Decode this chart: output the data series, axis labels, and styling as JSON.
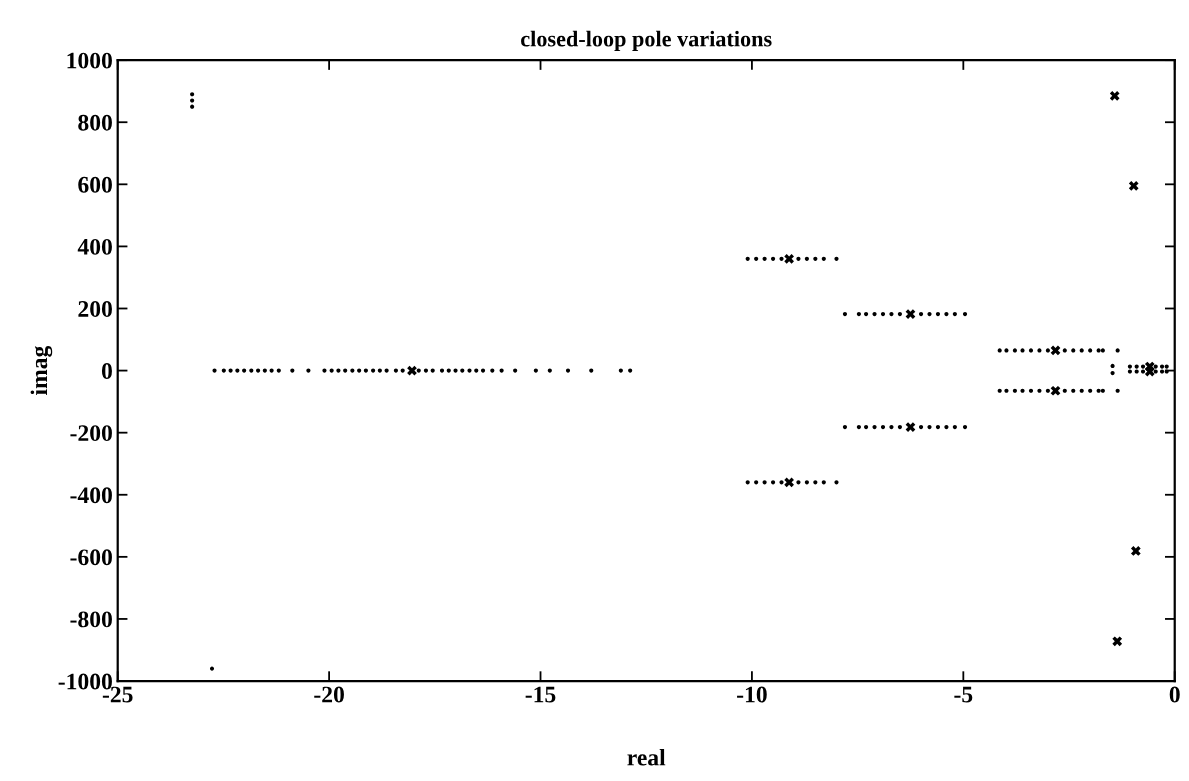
{
  "chart_data": {
    "type": "scatter",
    "title": "closed-loop pole variations",
    "xlabel": "real",
    "ylabel": "imag",
    "xlim": [
      -25,
      0
    ],
    "xticks": [
      -25,
      -20,
      -15,
      -10,
      -5,
      0
    ],
    "ylim": [
      -1000,
      1000
    ],
    "yticks": [
      -1000,
      -800,
      -600,
      -400,
      -200,
      0,
      200,
      400,
      600,
      800,
      1000
    ],
    "grid": false,
    "legend": false,
    "series": [
      {
        "color": "#000000",
        "marker": "circle",
        "x": [
          -22.71,
          -22.49,
          -22.33,
          -22.17,
          -22.01,
          -21.84,
          -21.68,
          -21.52,
          -21.36,
          -21.19,
          -20.87,
          -20.49,
          -20.11,
          -19.94,
          -19.78,
          -19.62,
          -19.45,
          -19.29,
          -19.13,
          -18.96,
          -18.8,
          -18.64,
          -18.42,
          -18.26,
          -17.88,
          -17.71,
          -17.55,
          -17.33,
          -17.17,
          -17.01,
          -16.85,
          -16.68,
          -16.52,
          -16.36,
          -16.14,
          -15.92,
          -15.6,
          -15.11,
          -14.78,
          -14.35,
          -13.8,
          -13.1,
          -12.88,
          -10.1,
          -9.9,
          -9.7,
          -9.5,
          -9.3,
          -8.9,
          -8.7,
          -8.5,
          -8.3,
          -8.0,
          -10.1,
          -9.9,
          -9.7,
          -9.5,
          -9.3,
          -8.9,
          -8.7,
          -8.5,
          -8.3,
          -8.0,
          -7.8,
          -7.47,
          -7.3,
          -7.1,
          -6.9,
          -6.7,
          -6.5,
          -6.0,
          -5.8,
          -5.6,
          -5.4,
          -5.2,
          -4.96,
          -7.8,
          -7.47,
          -7.3,
          -7.1,
          -6.9,
          -6.7,
          -6.5,
          -6.0,
          -5.8,
          -5.6,
          -5.4,
          -5.2,
          -4.96,
          -4.14,
          -3.98,
          -3.78,
          -3.6,
          -3.4,
          -3.2,
          -3.0,
          -2.6,
          -2.4,
          -2.2,
          -2.0,
          -1.8,
          -1.7,
          -1.35,
          -4.14,
          -3.98,
          -3.78,
          -3.6,
          -3.4,
          -3.2,
          -3.0,
          -2.6,
          -2.4,
          -2.2,
          -2.0,
          -1.8,
          -1.7,
          -1.35,
          -1.47,
          -1.47,
          -1.06,
          -0.9,
          -0.75,
          -0.45,
          -0.3,
          -0.19,
          -1.06,
          -0.9,
          -0.75,
          -0.45,
          -0.3,
          -0.19,
          -23.24,
          -23.24,
          -23.24,
          -22.77
        ],
        "values": [
          0,
          0,
          0,
          0,
          0,
          0,
          0,
          0,
          0,
          0,
          0,
          0,
          0,
          0,
          0,
          0,
          0,
          0,
          0,
          0,
          0,
          0,
          0,
          0,
          0,
          0,
          0,
          0,
          0,
          0,
          0,
          0,
          0,
          0,
          0,
          0,
          0,
          0,
          0,
          0,
          0,
          0,
          0,
          360,
          360,
          360,
          360,
          360,
          360,
          360,
          360,
          360,
          360,
          -360,
          -360,
          -360,
          -360,
          -360,
          -360,
          -360,
          -360,
          -360,
          -360,
          182,
          182,
          182,
          182,
          182,
          182,
          182,
          182,
          182,
          182,
          182,
          182,
          182,
          -182,
          -182,
          -182,
          -182,
          -182,
          -182,
          -182,
          -182,
          -182,
          -182,
          -182,
          -182,
          -182,
          65,
          65,
          65,
          65,
          65,
          65,
          65,
          65,
          65,
          65,
          65,
          65,
          65,
          65,
          -65,
          -65,
          -65,
          -65,
          -65,
          -65,
          -65,
          -65,
          -65,
          -65,
          -65,
          -65,
          -65,
          -65,
          15,
          -8,
          13,
          13,
          13,
          13,
          13,
          13,
          -3,
          -3,
          -3,
          -3,
          -3,
          -3,
          890,
          870,
          850,
          -960
        ]
      },
      {
        "color": "#000000",
        "marker": "cross",
        "x": [
          -18.04,
          -9.12,
          -9.12,
          -6.25,
          -6.25,
          -2.82,
          -2.82,
          -0.59,
          -0.59,
          -1.42,
          -0.97,
          -0.92,
          -1.36
        ],
        "values": [
          0,
          360,
          -360,
          182,
          -182,
          65,
          -65,
          13,
          -3,
          885,
          595,
          -581,
          -872
        ]
      }
    ]
  }
}
